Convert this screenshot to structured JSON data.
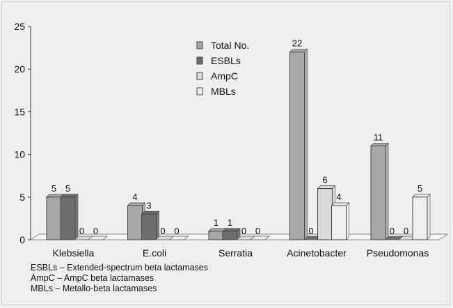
{
  "chart_data": {
    "type": "bar",
    "categories": [
      "Klebsiella",
      "E.coli",
      "Serratia",
      "Acinetobacter",
      "Pseudomonas"
    ],
    "series": [
      {
        "name": "Total No.",
        "values": [
          5,
          4,
          1,
          22,
          11
        ],
        "color": "#a8a8a8"
      },
      {
        "name": "ESBLs",
        "values": [
          5,
          3,
          1,
          0,
          0
        ],
        "color": "#6e6e6e"
      },
      {
        "name": "AmpC",
        "values": [
          0,
          0,
          0,
          6,
          0
        ],
        "color": "#d9d9d9"
      },
      {
        "name": "MBLs",
        "values": [
          0,
          0,
          0,
          4,
          5
        ],
        "color": "#efefef"
      }
    ],
    "ylim": [
      0,
      25
    ],
    "yticks": [
      "0",
      "5",
      "10",
      "15",
      "20",
      "25"
    ],
    "data_labels": true,
    "legend_placement": "top-center",
    "grid": false
  },
  "notes": [
    "ESBLs – Extended-spectrum beta lactamases",
    "AmpC – AmpC beta lactamases",
    "MBLs – Metallo-beta lactamases"
  ]
}
